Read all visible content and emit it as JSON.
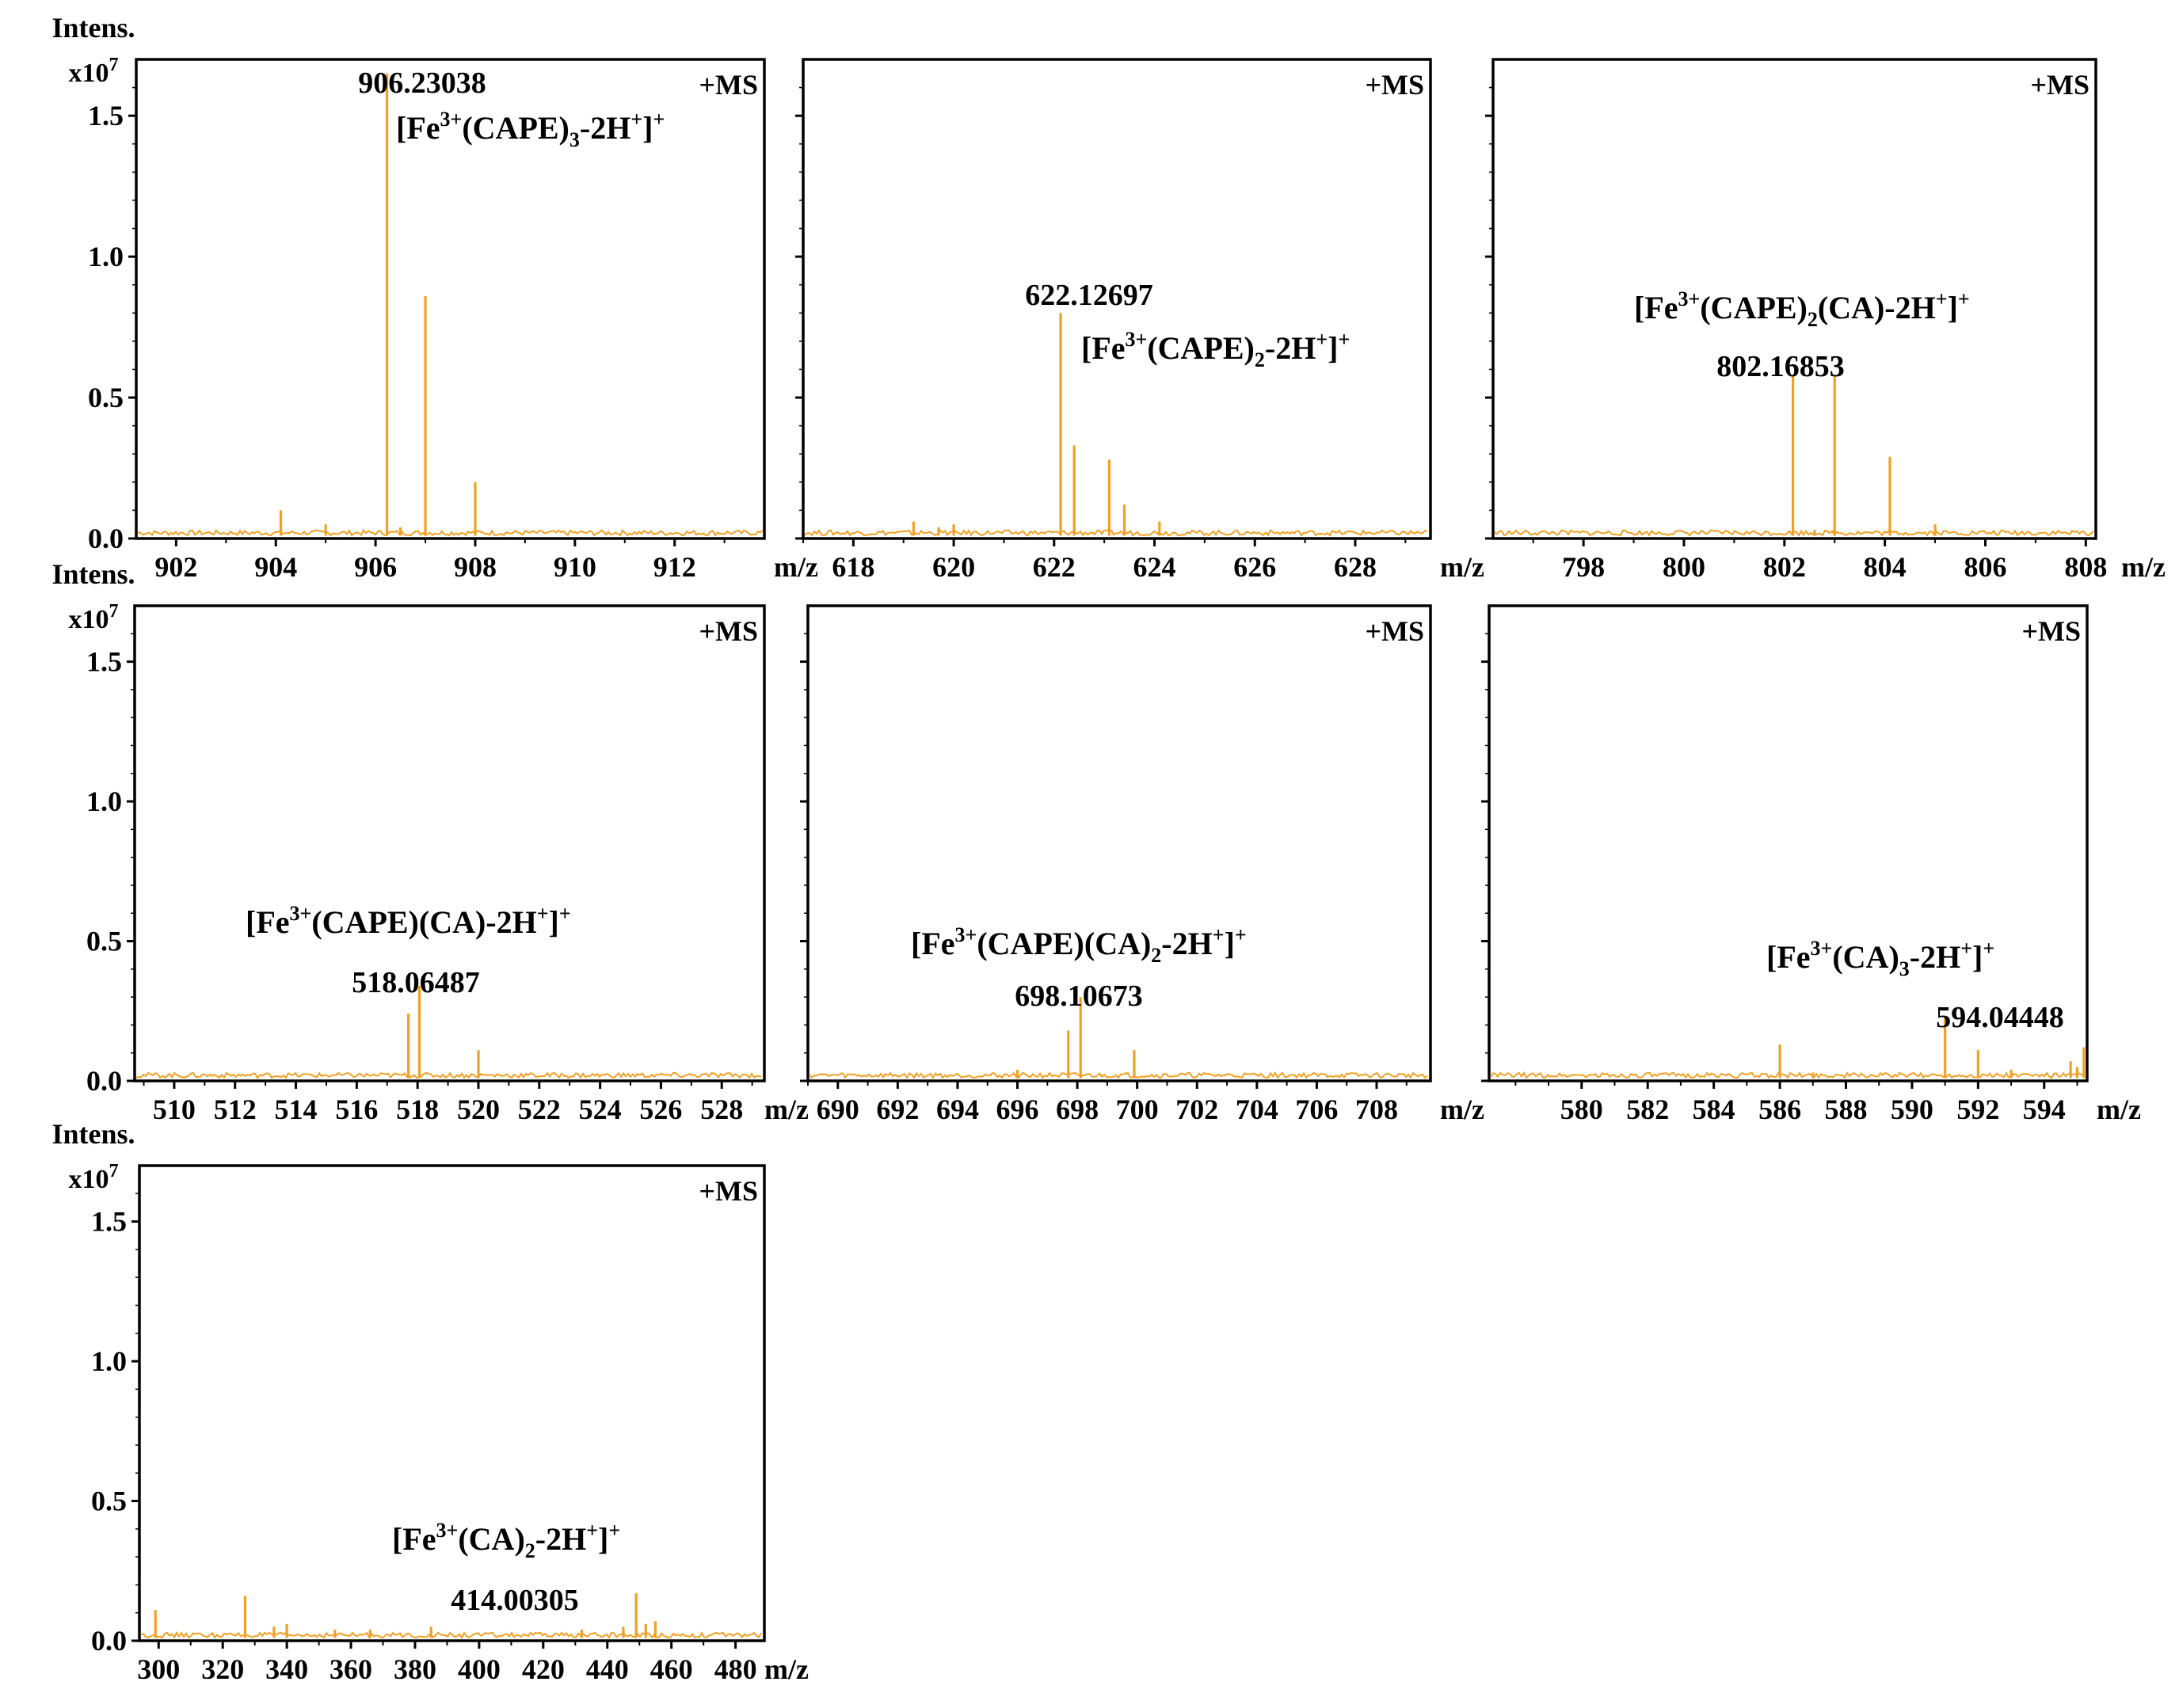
{
  "figure": {
    "peak_color": "#F2A024",
    "frame_color": "#000000",
    "xunit": "m/z",
    "yaxis_title": "Intens.",
    "yaxis_scale_base": "x10",
    "yaxis_scale_exp": "7",
    "ms_mode": "+MS"
  },
  "chart_data": [
    {
      "type": "line",
      "panel": "row1-col1",
      "xlabel": "m/z",
      "ylabel": "Intens.",
      "ylabel_scale": "x10^7",
      "xlim": [
        901.2,
        913.8
      ],
      "ylim": [
        0,
        1.7
      ],
      "xticks": [
        "902",
        "904",
        "906",
        "908",
        "910",
        "912"
      ],
      "yticks": [
        "0.0",
        "0.5",
        "1.0",
        "1.5"
      ],
      "mode_label": "+MS",
      "baseline": 0.02,
      "peaks": [
        [
          904.1,
          0.1
        ],
        [
          905.0,
          0.05
        ],
        [
          906.23,
          1.65
        ],
        [
          907.0,
          0.86
        ],
        [
          908.0,
          0.2
        ],
        [
          906.5,
          0.04
        ]
      ],
      "peak_label": "906.23038",
      "label_peak_x": 906.23,
      "annotation": {
        "pre": "[Fe",
        "sup1": "3+",
        "mid": "(CAPE)",
        "sub": "3",
        "post": "-2H",
        "sup2": "+",
        "end": "]",
        "sup3": "+"
      }
    },
    {
      "type": "line",
      "panel": "row1-col2",
      "xlabel": "m/z",
      "ylabel": "Intens.",
      "xlim": [
        617.0,
        629.5
      ],
      "ylim": [
        0,
        1.7
      ],
      "xticks": [
        "618",
        "620",
        "622",
        "624",
        "626",
        "628"
      ],
      "yticks": [],
      "mode_label": "+MS",
      "baseline": 0.02,
      "peaks": [
        [
          619.2,
          0.06
        ],
        [
          619.7,
          0.04
        ],
        [
          620.0,
          0.05
        ],
        [
          622.13,
          0.8
        ],
        [
          622.4,
          0.33
        ],
        [
          623.1,
          0.28
        ],
        [
          623.4,
          0.12
        ],
        [
          624.1,
          0.06
        ]
      ],
      "peak_label": "622.12697",
      "label_peak_x": 622.13,
      "annotation": {
        "pre": "[Fe",
        "sup1": "3+",
        "mid": "(CAPE)",
        "sub": "2",
        "post": "-2H",
        "sup2": "+",
        "end": "]",
        "sup3": "+"
      }
    },
    {
      "type": "line",
      "panel": "row1-col3",
      "xlabel": "m/z",
      "ylabel": "Intens.",
      "xlim": [
        796.2,
        808.2
      ],
      "ylim": [
        0,
        1.7
      ],
      "xticks": [
        "798",
        "800",
        "802",
        "804",
        "806",
        "808"
      ],
      "yticks": [],
      "mode_label": "+MS",
      "baseline": 0.02,
      "peaks": [
        [
          802.17,
          0.58
        ],
        [
          803.0,
          0.58
        ],
        [
          804.1,
          0.29
        ],
        [
          805.0,
          0.05
        ],
        [
          802.6,
          0.03
        ]
      ],
      "peak_label": "802.16853",
      "label_peak_x": 802.17,
      "annotation": {
        "pre": "[Fe",
        "sup1": "3+",
        "mid": "(CAPE)",
        "sub": "2",
        "post": "(CA)-2H",
        "sup2": "+",
        "end": "]",
        "sup3": "+"
      }
    },
    {
      "type": "line",
      "panel": "row2-col1",
      "xlabel": "m/z",
      "ylabel": "Intens.",
      "ylabel_scale": "x10^7",
      "xlim": [
        508.7,
        529.4
      ],
      "ylim": [
        0,
        1.7
      ],
      "xticks": [
        "510",
        "512",
        "514",
        "516",
        "518",
        "520",
        "522",
        "524",
        "526",
        "528"
      ],
      "yticks": [
        "0.0",
        "0.5",
        "1.0",
        "1.5"
      ],
      "mode_label": "+MS",
      "baseline": 0.02,
      "peaks": [
        [
          518.06,
          0.34
        ],
        [
          517.7,
          0.24
        ],
        [
          520.0,
          0.11
        ]
      ],
      "peak_label": "518.06487",
      "label_peak_x": 518.06,
      "annotation": {
        "pre": "[Fe",
        "sup1": "3+",
        "mid": "(CAPE)(CA)-2H",
        "sub": "",
        "post": "",
        "sup2": "+",
        "end": "]",
        "sup3": "+"
      }
    },
    {
      "type": "line",
      "panel": "row2-col2",
      "xlabel": "m/z",
      "ylabel": "Intens.",
      "xlim": [
        689.0,
        709.8
      ],
      "ylim": [
        0,
        1.7
      ],
      "xticks": [
        "690",
        "692",
        "694",
        "696",
        "698",
        "700",
        "702",
        "704",
        "706",
        "708"
      ],
      "yticks": [],
      "mode_label": "+MS",
      "baseline": 0.02,
      "peaks": [
        [
          698.11,
          0.3
        ],
        [
          697.7,
          0.18
        ],
        [
          699.9,
          0.11
        ],
        [
          696.0,
          0.04
        ]
      ],
      "peak_label": "698.10673",
      "label_peak_x": 698.11,
      "annotation": {
        "pre": "[Fe",
        "sup1": "3+",
        "mid": "(CAPE)(CA)",
        "sub": "2",
        "post": "-2H",
        "sup2": "+",
        "end": "]",
        "sup3": "+"
      }
    },
    {
      "type": "line",
      "panel": "row2-col3",
      "xlabel": "m/z",
      "ylabel": "Intens.",
      "xlim": [
        577.2,
        595.3
      ],
      "ylim": [
        0,
        1.7
      ],
      "xticks": [
        "580",
        "582",
        "584",
        "586",
        "588",
        "590",
        "592",
        "594"
      ],
      "yticks": [],
      "mode_label": "+MS",
      "baseline": 0.02,
      "peaks": [
        [
          586.0,
          0.13
        ],
        [
          587.0,
          0.03
        ],
        [
          591.0,
          0.23
        ],
        [
          592.0,
          0.11
        ],
        [
          593.0,
          0.04
        ],
        [
          594.8,
          0.07
        ],
        [
          595.0,
          0.05
        ],
        [
          595.2,
          0.12
        ]
      ],
      "peak_label": "594.04448",
      "label_peak_x": 594.04,
      "annotation": {
        "pre": "[Fe",
        "sup1": "3+",
        "mid": "(CA)",
        "sub": "3",
        "post": "-2H",
        "sup2": "+",
        "end": "]",
        "sup3": "+"
      }
    },
    {
      "type": "line",
      "panel": "row3-col1",
      "xlabel": "m/z",
      "ylabel": "Intens.",
      "ylabel_scale": "x10^7",
      "xlim": [
        294.0,
        489.0
      ],
      "ylim": [
        0,
        1.7
      ],
      "xticks": [
        "300",
        "320",
        "340",
        "360",
        "380",
        "400",
        "420",
        "440",
        "460",
        "480"
      ],
      "yticks": [
        "0.0",
        "0.5",
        "1.0",
        "1.5"
      ],
      "mode_label": "+MS",
      "baseline": 0.02,
      "peaks": [
        [
          299.0,
          0.11
        ],
        [
          327.0,
          0.16
        ],
        [
          336.0,
          0.05
        ],
        [
          340.0,
          0.06
        ],
        [
          355.0,
          0.04
        ],
        [
          366.0,
          0.04
        ],
        [
          385.0,
          0.05
        ],
        [
          432.0,
          0.04
        ],
        [
          445.0,
          0.05
        ],
        [
          449.0,
          0.17
        ],
        [
          452.0,
          0.06
        ],
        [
          455.0,
          0.07
        ]
      ],
      "peak_label": "414.00305",
      "label_peak_x": 414.0,
      "annotation": {
        "pre": "[Fe",
        "sup1": "3+",
        "mid": "(CA)",
        "sub": "2",
        "post": "-2H",
        "sup2": "+",
        "end": "]",
        "sup3": "+"
      }
    }
  ]
}
